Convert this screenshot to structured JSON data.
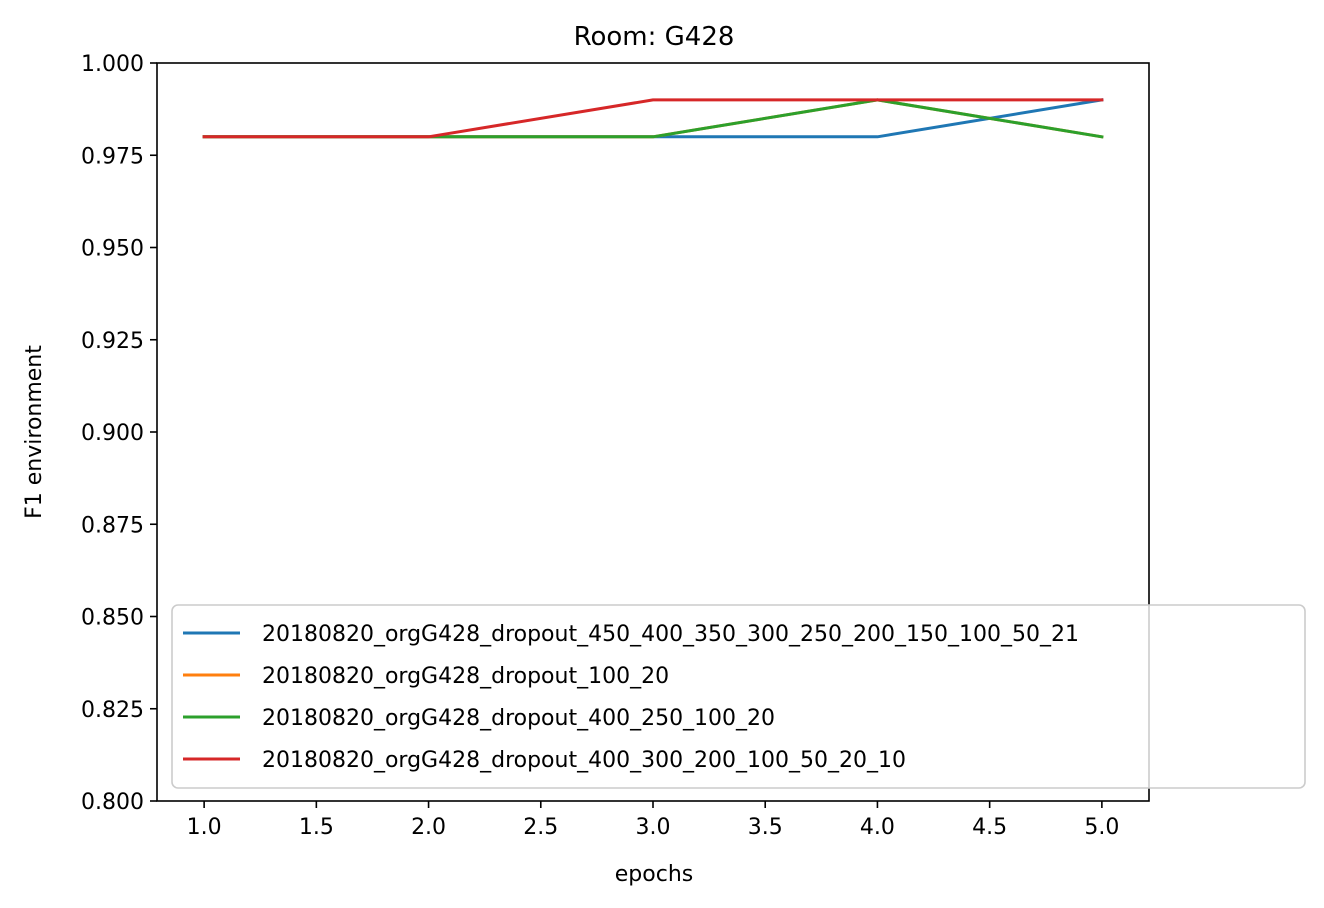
{
  "chart_data": {
    "type": "line",
    "title": "Room: G428",
    "xlabel": "epochs",
    "ylabel": "F1 environment",
    "xlim": [
      0.79,
      5.21
    ],
    "ylim": [
      0.8,
      1.0
    ],
    "x": [
      1.0,
      2.0,
      3.0,
      4.0,
      5.0
    ],
    "xticks": [
      "1.0",
      "1.5",
      "2.0",
      "2.5",
      "3.0",
      "3.5",
      "4.0",
      "4.5",
      "5.0"
    ],
    "yticks": [
      "0.800",
      "0.825",
      "0.850",
      "0.875",
      "0.900",
      "0.925",
      "0.950",
      "0.975",
      "1.000"
    ],
    "grid": false,
    "legend_position": "lower-right",
    "series": [
      {
        "name": "20180820_orgG428_dropout_450_400_350_300_250_200_150_100_50_21",
        "color": "#1f77b4",
        "values": [
          0.98,
          0.98,
          0.98,
          0.98,
          0.99
        ]
      },
      {
        "name": "20180820_orgG428_dropout_100_20",
        "color": "#ff7f0e",
        "values": [
          0.98,
          0.98,
          0.98,
          0.99,
          0.98
        ]
      },
      {
        "name": "20180820_orgG428_dropout_400_250_100_20",
        "color": "#2ca02c",
        "values": [
          0.98,
          0.98,
          0.98,
          0.99,
          0.98
        ]
      },
      {
        "name": "20180820_orgG428_dropout_400_300_200_100_50_20_10",
        "color": "#d62728",
        "values": [
          0.98,
          0.98,
          0.99,
          0.99,
          0.99
        ]
      }
    ]
  }
}
